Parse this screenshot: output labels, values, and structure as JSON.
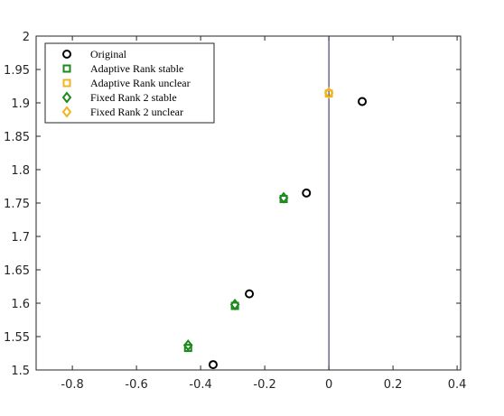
{
  "chart_data": {
    "type": "scatter",
    "xlim": [
      -0.913,
      0.411
    ],
    "ylim": [
      1.5,
      2
    ],
    "xticks": [
      -0.8,
      -0.6,
      -0.4,
      -0.2,
      0,
      0.2,
      0.4
    ],
    "yticks": [
      1.5,
      1.55,
      1.6,
      1.65,
      1.7,
      1.75,
      1.8,
      1.85,
      1.9,
      1.95,
      2
    ],
    "vline": 0,
    "vline_color": "#1f1f5f",
    "legend": "upper-left",
    "series": [
      {
        "name": "Original",
        "color": "#000000",
        "marker": "circle",
        "x": [
          0.104,
          -0.07,
          -0.248,
          -0.361
        ],
        "values": [
          1.902,
          1.765,
          1.614,
          1.508
        ]
      },
      {
        "name": "Adaptive Rank stable",
        "color": "#1b8a1b",
        "marker": "square",
        "x": [
          -0.141,
          -0.293,
          -0.439
        ],
        "values": [
          1.756,
          1.596,
          1.533
        ]
      },
      {
        "name": "Adaptive Rank unclear",
        "color": "#f0b420",
        "marker": "square",
        "x": [
          0
        ],
        "values": [
          1.914
        ]
      },
      {
        "name": "Fixed Rank 2 stable",
        "color": "#1b8a1b",
        "marker": "diamond",
        "x": [
          -0.141,
          -0.293,
          -0.439
        ],
        "values": [
          1.758,
          1.598,
          1.537
        ]
      },
      {
        "name": "Fixed Rank 2 unclear",
        "color": "#f0b420",
        "marker": "diamond",
        "x": [
          0
        ],
        "values": [
          1.915
        ]
      }
    ]
  }
}
